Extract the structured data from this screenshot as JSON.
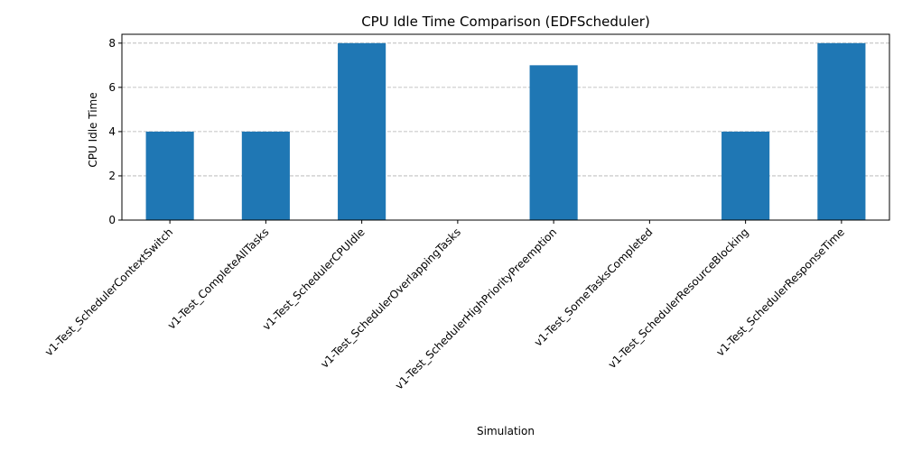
{
  "chart_data": {
    "type": "bar",
    "title": "CPU Idle Time Comparison (EDFScheduler)",
    "xlabel": "Simulation",
    "ylabel": "CPU Idle Time",
    "categories": [
      "v1-Test_SchedulerContextSwitch",
      "v1-Test_CompleteAllTasks",
      "v1-Test_SchedulerCPUIdle",
      "v1-Test_SchedulerOverlappingTasks",
      "v1-Test_SchedulerHighPriorityPreemption",
      "v1-Test_SomeTasksCompleted",
      "v1-Test_SchedulerResourceBlocking",
      "v1-Test_SchedulerResponseTime"
    ],
    "values": [
      4,
      4,
      8,
      0,
      7,
      0,
      4,
      8
    ],
    "ylim": [
      0,
      8.4
    ],
    "yticks": [
      0,
      2,
      4,
      6,
      8
    ],
    "grid": "y dashed",
    "legend": "none",
    "colors": {
      "bar": "#1f77b4",
      "grid": "#b0b0b0",
      "axis": "#000000"
    }
  }
}
